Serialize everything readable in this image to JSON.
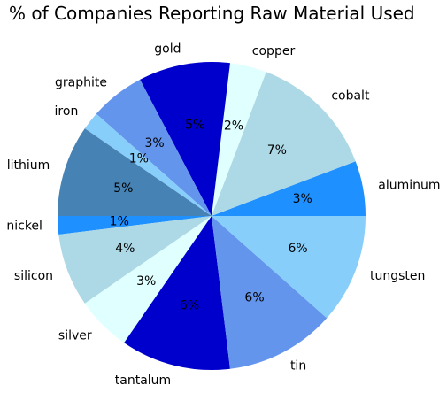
{
  "chart_data": {
    "type": "pie",
    "title": "% of Companies Reporting Raw Material Used",
    "slices": [
      {
        "label": "aluminum",
        "value": 3,
        "pct_text": "3%",
        "color": "#1E90FF"
      },
      {
        "label": "cobalt",
        "value": 7,
        "pct_text": "7%",
        "color": "#ADD8E6"
      },
      {
        "label": "copper",
        "value": 2,
        "pct_text": "2%",
        "color": "#E0FFFF"
      },
      {
        "label": "gold",
        "value": 5,
        "pct_text": "5%",
        "color": "#0000CD"
      },
      {
        "label": "graphite",
        "value": 3,
        "pct_text": "3%",
        "color": "#6495ED"
      },
      {
        "label": "iron",
        "value": 1,
        "pct_text": "1%",
        "color": "#87CEFA"
      },
      {
        "label": "lithium",
        "value": 5,
        "pct_text": "5%",
        "color": "#4682B4"
      },
      {
        "label": "nickel",
        "value": 1,
        "pct_text": "1%",
        "color": "#1E90FF"
      },
      {
        "label": "silicon",
        "value": 4,
        "pct_text": "4%",
        "color": "#ADD8E6"
      },
      {
        "label": "silver",
        "value": 3,
        "pct_text": "3%",
        "color": "#E0FFFF"
      },
      {
        "label": "tantalum",
        "value": 6,
        "pct_text": "6%",
        "color": "#0000CD"
      },
      {
        "label": "tin",
        "value": 6,
        "pct_text": "6%",
        "color": "#6495ED"
      },
      {
        "label": "tungsten",
        "value": 6,
        "pct_text": "6%",
        "color": "#87CEFA"
      }
    ]
  }
}
